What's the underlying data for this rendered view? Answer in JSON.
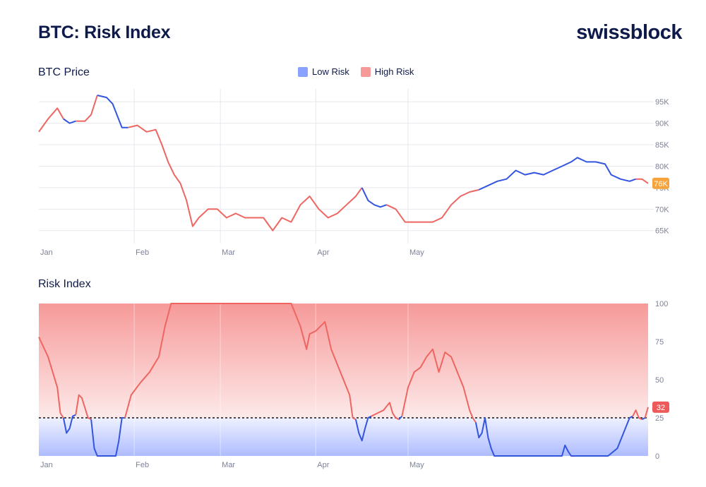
{
  "header": {
    "title": "BTC: Risk Index",
    "brand": "swissblock"
  },
  "legend": [
    {
      "label": "Low Risk",
      "color": "#8aa2ff"
    },
    {
      "label": "High Risk",
      "color": "#f69a99"
    }
  ],
  "colors": {
    "low": "#3355e0",
    "high": "#ee6661",
    "badge_price": "#f6a33b",
    "badge_risk": "#ee5a5a"
  },
  "chart_data": [
    {
      "type": "line",
      "title": "BTC Price",
      "x_ticks": [
        "Jan",
        "Feb",
        "Mar",
        "Apr",
        "May"
      ],
      "y_ticks": [
        "65K",
        "70K",
        "75K",
        "80K",
        "85K",
        "90K",
        "95K"
      ],
      "ylim": [
        62,
        97
      ],
      "last_value_label": "76K",
      "series": [
        {
          "name": "BTC Price",
          "points": [
            [
              0,
              88,
              "h"
            ],
            [
              3,
              91,
              "h"
            ],
            [
              6,
              93.5,
              "h"
            ],
            [
              8,
              91,
              "l"
            ],
            [
              10,
              90,
              "l"
            ],
            [
              12,
              90.5,
              "h"
            ],
            [
              15,
              90.5,
              "h"
            ],
            [
              17,
              92,
              "h"
            ],
            [
              19,
              96.5,
              "l"
            ],
            [
              22,
              96,
              "l"
            ],
            [
              24,
              94.5,
              "l"
            ],
            [
              27,
              89,
              "l"
            ],
            [
              29,
              89,
              "h"
            ],
            [
              32,
              89.5,
              "h"
            ],
            [
              35,
              88,
              "h"
            ],
            [
              38,
              88.5,
              "h"
            ],
            [
              40,
              85,
              "h"
            ],
            [
              42,
              81,
              "h"
            ],
            [
              44,
              78,
              "h"
            ],
            [
              46,
              76,
              "h"
            ],
            [
              48,
              72,
              "h"
            ],
            [
              50,
              66,
              "h"
            ],
            [
              52,
              68,
              "h"
            ],
            [
              55,
              70,
              "h"
            ],
            [
              58,
              70,
              "h"
            ],
            [
              61,
              68,
              "h"
            ],
            [
              64,
              69,
              "h"
            ],
            [
              67,
              68,
              "h"
            ],
            [
              70,
              68,
              "h"
            ],
            [
              73,
              68,
              "h"
            ],
            [
              76,
              65,
              "h"
            ],
            [
              79,
              68,
              "h"
            ],
            [
              82,
              67,
              "h"
            ],
            [
              85,
              71,
              "h"
            ],
            [
              88,
              73,
              "h"
            ],
            [
              91,
              70,
              "h"
            ],
            [
              94,
              68,
              "h"
            ],
            [
              97,
              69,
              "h"
            ],
            [
              100,
              71,
              "h"
            ],
            [
              103,
              73,
              "h"
            ],
            [
              105,
              75,
              "l"
            ],
            [
              107,
              72,
              "l"
            ],
            [
              109,
              71,
              "l"
            ],
            [
              111,
              70.5,
              "l"
            ],
            [
              113,
              71,
              "h"
            ],
            [
              116,
              70,
              "h"
            ],
            [
              119,
              67,
              "h"
            ],
            [
              122,
              67,
              "h"
            ],
            [
              125,
              67,
              "h"
            ],
            [
              128,
              67,
              "h"
            ],
            [
              131,
              68,
              "h"
            ],
            [
              134,
              71,
              "h"
            ],
            [
              137,
              73,
              "h"
            ],
            [
              140,
              74,
              "h"
            ],
            [
              143,
              74.5,
              "l"
            ],
            [
              146,
              75.5,
              "l"
            ],
            [
              149,
              76.5,
              "l"
            ],
            [
              152,
              77,
              "l"
            ],
            [
              155,
              79,
              "l"
            ],
            [
              158,
              78,
              "l"
            ],
            [
              161,
              78.5,
              "l"
            ],
            [
              164,
              78,
              "l"
            ],
            [
              167,
              79,
              "l"
            ],
            [
              170,
              80,
              "l"
            ],
            [
              173,
              81,
              "l"
            ],
            [
              175,
              82,
              "l"
            ],
            [
              178,
              81,
              "l"
            ],
            [
              181,
              81,
              "l"
            ],
            [
              184,
              80.5,
              "l"
            ],
            [
              186,
              78,
              "l"
            ],
            [
              189,
              77,
              "l"
            ],
            [
              192,
              76.5,
              "l"
            ],
            [
              194,
              77,
              "h"
            ],
            [
              196,
              77,
              "h"
            ],
            [
              198,
              76,
              "h"
            ]
          ]
        }
      ]
    },
    {
      "type": "line",
      "title": "Risk Index",
      "x_ticks": [
        "Jan",
        "Feb",
        "Mar",
        "Apr",
        "May"
      ],
      "y_ticks": [
        "0",
        "25",
        "50",
        "75",
        "100"
      ],
      "ylim": [
        0,
        100
      ],
      "threshold": 25,
      "last_value_label": "32",
      "series": [
        {
          "name": "Risk Index",
          "points": [
            [
              0,
              78,
              "h"
            ],
            [
              3,
              65,
              "h"
            ],
            [
              6,
              45,
              "h"
            ],
            [
              7,
              28,
              "h"
            ],
            [
              8,
              25,
              "l"
            ],
            [
              9,
              15,
              "l"
            ],
            [
              10,
              18,
              "l"
            ],
            [
              11,
              26,
              "l"
            ],
            [
              12,
              27,
              "h"
            ],
            [
              13,
              40,
              "h"
            ],
            [
              14,
              38,
              "h"
            ],
            [
              16,
              25,
              "h"
            ],
            [
              17,
              24,
              "l"
            ],
            [
              18,
              5,
              "l"
            ],
            [
              19,
              0,
              "l"
            ],
            [
              22,
              0,
              "l"
            ],
            [
              25,
              0,
              "l"
            ],
            [
              26,
              10,
              "l"
            ],
            [
              27,
              25,
              "l"
            ],
            [
              28,
              25,
              "h"
            ],
            [
              30,
              40,
              "h"
            ],
            [
              33,
              48,
              "h"
            ],
            [
              36,
              55,
              "h"
            ],
            [
              39,
              65,
              "h"
            ],
            [
              41,
              85,
              "h"
            ],
            [
              43,
              100,
              "h"
            ],
            [
              47,
              100,
              "h"
            ],
            [
              52,
              100,
              "h"
            ],
            [
              57,
              100,
              "h"
            ],
            [
              62,
              100,
              "h"
            ],
            [
              67,
              100,
              "h"
            ],
            [
              72,
              100,
              "h"
            ],
            [
              77,
              100,
              "h"
            ],
            [
              82,
              100,
              "h"
            ],
            [
              83,
              95,
              "h"
            ],
            [
              85,
              85,
              "h"
            ],
            [
              87,
              70,
              "h"
            ],
            [
              88,
              80,
              "h"
            ],
            [
              90,
              82,
              "h"
            ],
            [
              93,
              88,
              "h"
            ],
            [
              95,
              70,
              "h"
            ],
            [
              97,
              60,
              "h"
            ],
            [
              99,
              50,
              "h"
            ],
            [
              101,
              40,
              "h"
            ],
            [
              102,
              25,
              "h"
            ],
            [
              103,
              24,
              "l"
            ],
            [
              104,
              15,
              "l"
            ],
            [
              105,
              10,
              "l"
            ],
            [
              106,
              18,
              "l"
            ],
            [
              107,
              25,
              "l"
            ],
            [
              108,
              26,
              "h"
            ],
            [
              110,
              28,
              "h"
            ],
            [
              112,
              30,
              "h"
            ],
            [
              114,
              35,
              "h"
            ],
            [
              115,
              28,
              "h"
            ],
            [
              116,
              25,
              "h"
            ],
            [
              117,
              24,
              "l"
            ],
            [
              118,
              26,
              "h"
            ],
            [
              120,
              45,
              "h"
            ],
            [
              122,
              55,
              "h"
            ],
            [
              124,
              58,
              "h"
            ],
            [
              126,
              65,
              "h"
            ],
            [
              128,
              70,
              "h"
            ],
            [
              130,
              55,
              "h"
            ],
            [
              132,
              68,
              "h"
            ],
            [
              134,
              65,
              "h"
            ],
            [
              136,
              55,
              "h"
            ],
            [
              138,
              45,
              "h"
            ],
            [
              140,
              30,
              "h"
            ],
            [
              141,
              25,
              "h"
            ],
            [
              142,
              22,
              "l"
            ],
            [
              143,
              12,
              "l"
            ],
            [
              144,
              15,
              "l"
            ],
            [
              145,
              25,
              "l"
            ],
            [
              146,
              12,
              "l"
            ],
            [
              147,
              5,
              "l"
            ],
            [
              148,
              0,
              "l"
            ],
            [
              154,
              0,
              "l"
            ],
            [
              160,
              0,
              "l"
            ],
            [
              166,
              0,
              "l"
            ],
            [
              170,
              0,
              "l"
            ],
            [
              171,
              7,
              "l"
            ],
            [
              172,
              3,
              "l"
            ],
            [
              173,
              0,
              "l"
            ],
            [
              179,
              0,
              "l"
            ],
            [
              185,
              0,
              "l"
            ],
            [
              188,
              5,
              "l"
            ],
            [
              190,
              15,
              "l"
            ],
            [
              192,
              25,
              "l"
            ],
            [
              193,
              26,
              "h"
            ],
            [
              194,
              30,
              "h"
            ],
            [
              195,
              25,
              "h"
            ],
            [
              196,
              24,
              "l"
            ],
            [
              197,
              25,
              "h"
            ],
            [
              198,
              32,
              "h"
            ]
          ]
        }
      ]
    }
  ]
}
